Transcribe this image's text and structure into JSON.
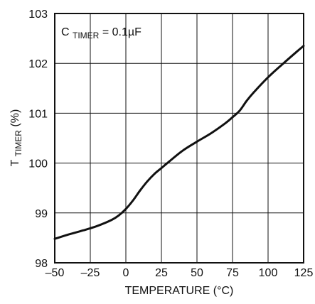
{
  "chart_data": {
    "type": "line",
    "title": "",
    "xlabel": "TEMPERATURE (°C)",
    "ylabel": {
      "main": "T",
      "sub": "TIMER",
      "suffix": " (%)"
    },
    "annotation": {
      "main": "C",
      "sub": "TIMER",
      "suffix": "= 0.1µF"
    },
    "xlim": [
      -50,
      125
    ],
    "ylim": [
      98,
      103
    ],
    "xticks": [
      {
        "value": -50,
        "label": "–50"
      },
      {
        "value": -25,
        "label": "–25"
      },
      {
        "value": 0,
        "label": "0"
      },
      {
        "value": 25,
        "label": "25"
      },
      {
        "value": 50,
        "label": "50"
      },
      {
        "value": 75,
        "label": "75"
      },
      {
        "value": 100,
        "label": "100"
      },
      {
        "value": 125,
        "label": "125"
      }
    ],
    "yticks": [
      {
        "value": 98,
        "label": "98"
      },
      {
        "value": 99,
        "label": "99"
      },
      {
        "value": 100,
        "label": "100"
      },
      {
        "value": 101,
        "label": "101"
      },
      {
        "value": 102,
        "label": "102"
      },
      {
        "value": 103,
        "label": "103"
      }
    ],
    "grid": true,
    "legend": "none",
    "series": [
      {
        "name": "",
        "color": "#111111",
        "x": [
          -50,
          -40,
          -30,
          -20,
          -10,
          -5,
          0,
          5,
          10,
          15,
          20,
          25,
          30,
          40,
          50,
          60,
          70,
          75,
          80,
          85,
          90,
          100,
          110,
          120,
          125
        ],
        "y": [
          98.48,
          98.57,
          98.65,
          98.74,
          98.86,
          98.95,
          99.08,
          99.25,
          99.45,
          99.63,
          99.78,
          99.9,
          100.02,
          100.25,
          100.43,
          100.6,
          100.8,
          100.92,
          101.05,
          101.25,
          101.42,
          101.72,
          101.98,
          102.23,
          102.35
        ]
      }
    ]
  }
}
